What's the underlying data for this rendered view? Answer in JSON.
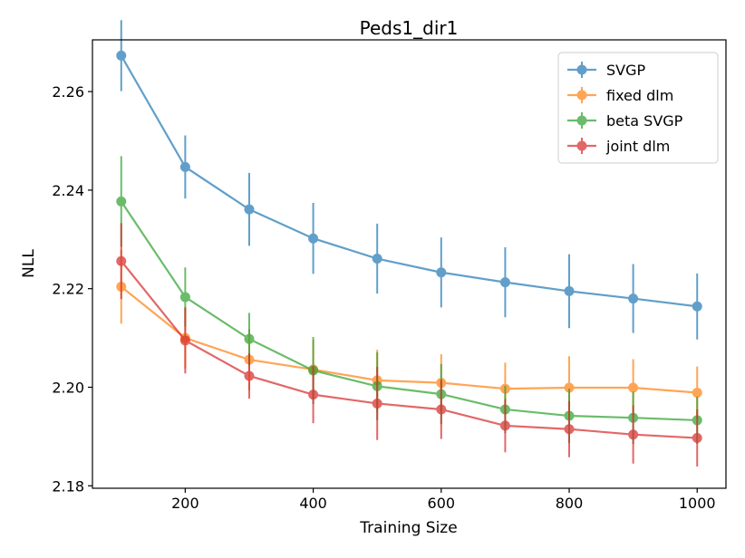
{
  "chart_data": {
    "type": "line",
    "title": "Peds1_dir1",
    "xlabel": "Training Size",
    "ylabel": "NLL",
    "xlim": [
      55,
      1045
    ],
    "ylim": [
      2.1795,
      2.2705
    ],
    "xticks": [
      200,
      400,
      600,
      800,
      1000
    ],
    "xtick_labels": [
      "200",
      "400",
      "600",
      "800",
      "1000"
    ],
    "yticks": [
      2.18,
      2.2,
      2.22,
      2.24,
      2.26
    ],
    "ytick_labels": [
      "2.18",
      "2.20",
      "2.22",
      "2.24",
      "2.26"
    ],
    "grid": false,
    "legend_position": "top-right",
    "x": [
      100,
      200,
      300,
      400,
      500,
      600,
      700,
      800,
      900,
      1000
    ],
    "series": [
      {
        "name": "SVGP",
        "color": "#1f77b4",
        "values": [
          2.2673,
          2.2447,
          2.2361,
          2.2302,
          2.2261,
          2.2233,
          2.2213,
          2.2195,
          2.218,
          2.2164
        ],
        "errors": [
          0.0072,
          0.0064,
          0.0074,
          0.0072,
          0.0071,
          0.0071,
          0.0071,
          0.0075,
          0.007,
          0.0067
        ]
      },
      {
        "name": "fixed dlm",
        "color": "#ff7f0e",
        "values": [
          2.2204,
          2.21,
          2.2056,
          2.2036,
          2.2014,
          2.2009,
          2.1997,
          2.1999,
          2.1999,
          2.1989
        ],
        "errors": [
          0.0075,
          0.0062,
          0.0062,
          0.006,
          0.0062,
          0.0058,
          0.0053,
          0.0064,
          0.0058,
          0.0053
        ]
      },
      {
        "name": "beta SVGP",
        "color": "#2ca02c",
        "values": [
          2.2377,
          2.2183,
          2.2098,
          2.2034,
          2.2002,
          2.1986,
          2.1955,
          2.1942,
          2.1938,
          2.1933
        ],
        "errors": [
          0.0092,
          0.006,
          0.0053,
          0.0068,
          0.0069,
          0.0061,
          0.0048,
          0.0055,
          0.0053,
          0.0048
        ]
      },
      {
        "name": "joint dlm",
        "color": "#d62728",
        "values": [
          2.2256,
          2.2095,
          2.2023,
          2.1985,
          2.1967,
          2.1955,
          2.1922,
          2.1915,
          2.1904,
          2.1897
        ],
        "errors": [
          0.0077,
          0.0067,
          0.0046,
          0.0058,
          0.0074,
          0.006,
          0.0054,
          0.0057,
          0.0059,
          0.0058
        ]
      }
    ]
  }
}
